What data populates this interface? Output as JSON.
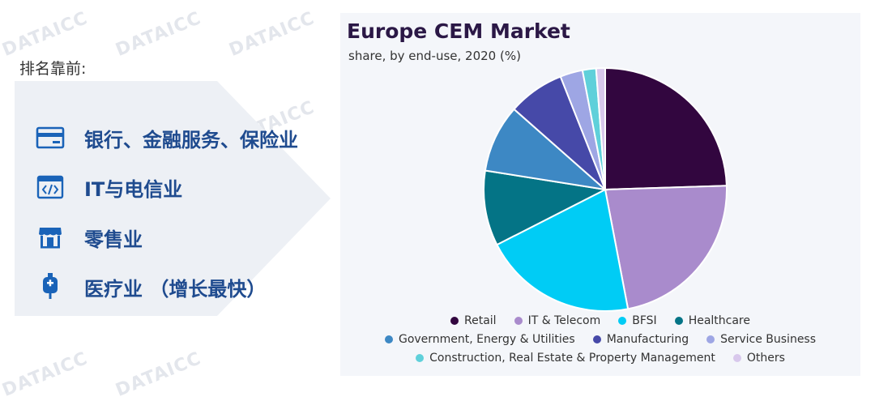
{
  "watermark": "DATAICC",
  "left": {
    "heading": "排名靠前:",
    "items": [
      {
        "label": "银行、金融服务、保险业",
        "icon": "credit-card-icon"
      },
      {
        "label": "IT与电信业",
        "icon": "code-window-icon"
      },
      {
        "label": "零售业",
        "icon": "storefront-icon"
      },
      {
        "label": "医疗业 （增长最快）",
        "icon": "iv-bag-icon"
      }
    ],
    "panel_color": "#edf0f5",
    "text_color": "#1f4b8f",
    "icon_color": "#1a63b8"
  },
  "chart_data": {
    "type": "pie",
    "title": "Europe CEM Market",
    "subtitle": "share, by end-use, 2020 (%)",
    "legend_position": "bottom",
    "slices": [
      {
        "name": "Retail",
        "value": 24.5,
        "color": "#32063f"
      },
      {
        "name": "IT & Telecom",
        "value": 22.5,
        "color": "#a98bcc"
      },
      {
        "name": "BFSI",
        "value": 20.5,
        "color": "#00ccf5"
      },
      {
        "name": "Healthcare",
        "value": 10.0,
        "color": "#047486"
      },
      {
        "name": "Government, Energy & Utilities",
        "value": 9.0,
        "color": "#3d88c4"
      },
      {
        "name": "Manufacturing",
        "value": 7.5,
        "color": "#4649a8"
      },
      {
        "name": "Service Business",
        "value": 3.0,
        "color": "#9ea6e4"
      },
      {
        "name": "Construction, Real Estate & Property Management",
        "value": 1.8,
        "color": "#5fd0da"
      },
      {
        "name": "Others",
        "value": 1.2,
        "color": "#d8c8ec"
      }
    ]
  }
}
